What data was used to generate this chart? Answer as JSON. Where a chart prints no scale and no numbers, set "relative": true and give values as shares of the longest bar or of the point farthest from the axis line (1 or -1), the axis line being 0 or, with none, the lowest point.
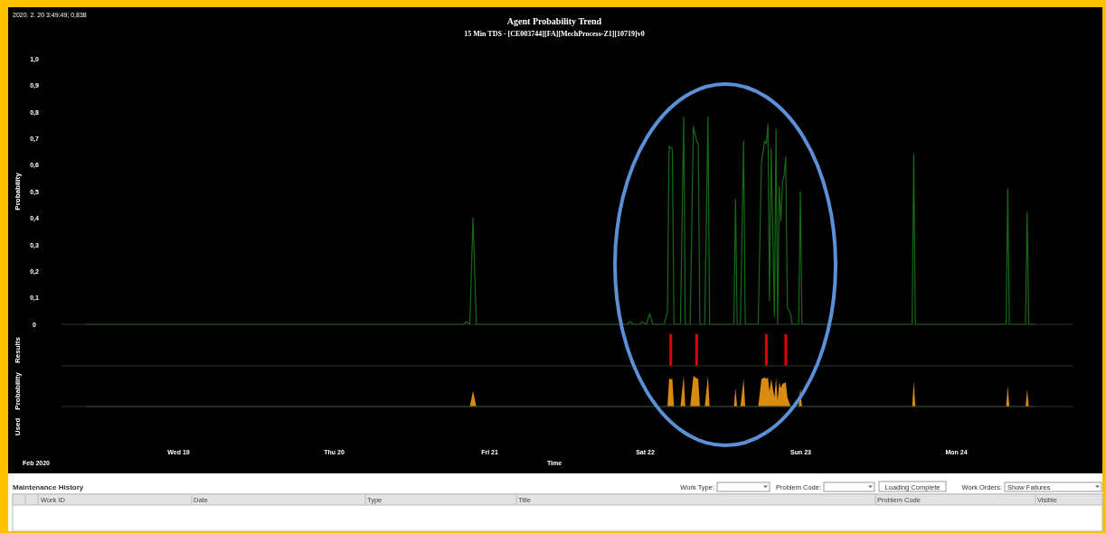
{
  "chart_data": [
    {
      "type": "line",
      "title": "Agent Probability Trend",
      "subtitle": "15 Min TDS - [CE003744][FA][MechProcess-Z1][10719]v0",
      "ylabel": "Probability",
      "annotations": [
        "2020. 2. 20 3:49:49; 0,838"
      ],
      "xlim": [
        "2020-02-18T06:00",
        "2020-02-24T18:00"
      ],
      "ylim": [
        0,
        1
      ],
      "yticks": [
        0,
        {
          "value": 0.1,
          "label": "0,1"
        },
        {
          "value": 0.2,
          "label": "0,2"
        },
        {
          "value": 0.3,
          "label": "0,3"
        },
        {
          "value": 0.4,
          "label": "0,4"
        },
        {
          "value": 0.5,
          "label": "0,5"
        },
        {
          "value": 0.6,
          "label": "0,6"
        },
        {
          "value": 0.7,
          "label": "0,7"
        },
        {
          "value": 0.8,
          "label": "0,8"
        },
        {
          "value": 0.9,
          "label": "0,9"
        },
        {
          "value": 1,
          "label": "1,0"
        }
      ],
      "tick_labels": "y",
      "x": [
        "2020-02-18T09:45",
        "2020-02-20T20:00",
        "2020-02-20T20:30",
        "2020-02-20T21:00",
        "2020-02-20T21:30",
        "2020-02-20T22:00",
        "2020-02-21T21:15",
        "2020-02-21T21:45",
        "2020-02-21T22:15",
        "2020-02-21T23:15",
        "2020-02-21T23:30",
        "2020-02-22T00:15",
        "2020-02-22T00:45",
        "2020-02-22T01:15",
        "2020-02-22T03:00",
        "2020-02-22T03:30",
        "2020-02-22T03:45",
        "2020-02-22T04:15",
        "2020-02-22T04:30",
        "2020-02-22T05:30",
        "2020-02-22T06:00",
        "2020-02-22T06:15",
        "2020-02-22T07:00",
        "2020-02-22T07:30",
        "2020-02-22T08:00",
        "2020-02-22T08:15",
        "2020-02-22T08:30",
        "2020-02-22T09:15",
        "2020-02-22T09:45",
        "2020-02-22T10:00",
        "2020-02-22T13:45",
        "2020-02-22T14:00",
        "2020-02-22T14:15",
        "2020-02-22T14:45",
        "2020-02-22T15:15",
        "2020-02-22T15:30",
        "2020-02-22T17:30",
        "2020-02-22T18:00",
        "2020-02-22T18:30",
        "2020-02-22T18:45",
        "2020-02-22T19:00",
        "2020-02-22T19:15",
        "2020-02-22T19:30",
        "2020-02-22T20:00",
        "2020-02-22T20:15",
        "2020-02-22T20:30",
        "2020-02-22T20:45",
        "2020-02-22T21:00",
        "2020-02-22T21:15",
        "2020-02-22T21:30",
        "2020-02-22T21:45",
        "2020-02-22T22:00",
        "2020-02-22T22:30",
        "2020-02-22T22:45",
        "2020-02-22T23:45",
        "2020-02-23T00:00",
        "2020-02-23T00:15",
        "2020-02-23T17:15",
        "2020-02-23T17:30",
        "2020-02-23T17:45",
        "2020-02-24T07:45",
        "2020-02-24T08:00",
        "2020-02-24T08:15",
        "2020-02-24T10:45",
        "2020-02-24T11:00",
        "2020-02-24T11:15",
        "2020-02-24T12:15"
      ],
      "series": [
        {
          "color": "#156b15",
          "values": [
            0,
            0,
            0.01,
            0,
            0.4,
            0,
            0,
            0.01,
            0,
            0,
            0.01,
            0,
            0.04,
            0,
            0,
            0.05,
            0.67,
            0.66,
            0,
            0,
            0.78,
            0,
            0,
            0.745,
            0.69,
            0.68,
            0,
            0,
            0.78,
            0,
            0,
            0.47,
            0,
            0,
            0.69,
            0,
            0,
            0.61,
            0.69,
            0.68,
            0.755,
            0.09,
            0.66,
            0.03,
            0.735,
            0,
            0.52,
            0.39,
            0.54,
            0.56,
            0.63,
            0.065,
            0.04,
            0,
            0,
            0.5,
            0,
            0,
            0.64,
            0,
            0,
            0.51,
            0,
            0,
            0.42,
            0,
            0
          ]
        }
      ]
    },
    {
      "type": "bar",
      "ylabel": "Results",
      "relative": true,
      "tick_labels": false,
      "xlim": [
        "2020-02-18T06:00",
        "2020-02-24T18:00"
      ],
      "x": [
        "2020-02-22T04:00",
        "2020-02-22T08:00",
        "2020-02-22T18:45",
        "2020-02-22T21:45"
      ],
      "series": [
        {
          "color": "#e00000",
          "values": [
            1,
            1,
            1,
            1
          ]
        }
      ]
    },
    {
      "type": "area",
      "ylabel": "Probability",
      "xlabel": "Time",
      "relative": true,
      "tick_labels": "x",
      "annotations": [
        "Feb 2020"
      ],
      "xlim": [
        "2020-02-18T06:00",
        "2020-02-24T18:00"
      ],
      "xticks": [
        {
          "value": "2020-02-19",
          "label": "Wed 19"
        },
        {
          "value": "2020-02-20",
          "label": "Thu 20"
        },
        {
          "value": "2020-02-21",
          "label": "Fri 21"
        },
        {
          "value": "2020-02-22",
          "label": "Sat 22"
        },
        {
          "value": "2020-02-23",
          "label": "Sun 23"
        },
        {
          "value": "2020-02-24",
          "label": "Mon 24"
        }
      ],
      "x": [
        "2020-02-18T09:45",
        "2020-02-20T20:00",
        "2020-02-20T20:30",
        "2020-02-20T21:00",
        "2020-02-20T21:30",
        "2020-02-20T22:00",
        "2020-02-21T21:15",
        "2020-02-21T21:45",
        "2020-02-21T22:15",
        "2020-02-21T23:15",
        "2020-02-21T23:30",
        "2020-02-22T00:15",
        "2020-02-22T00:45",
        "2020-02-22T01:15",
        "2020-02-22T03:00",
        "2020-02-22T03:30",
        "2020-02-22T03:45",
        "2020-02-22T04:15",
        "2020-02-22T04:30",
        "2020-02-22T05:30",
        "2020-02-22T06:00",
        "2020-02-22T06:15",
        "2020-02-22T07:00",
        "2020-02-22T07:30",
        "2020-02-22T08:00",
        "2020-02-22T08:15",
        "2020-02-22T08:30",
        "2020-02-22T09:15",
        "2020-02-22T09:45",
        "2020-02-22T10:00",
        "2020-02-22T13:45",
        "2020-02-22T14:00",
        "2020-02-22T14:15",
        "2020-02-22T14:45",
        "2020-02-22T15:15",
        "2020-02-22T15:30",
        "2020-02-22T17:30",
        "2020-02-22T18:00",
        "2020-02-22T18:30",
        "2020-02-22T18:45",
        "2020-02-22T19:00",
        "2020-02-22T19:15",
        "2020-02-22T19:30",
        "2020-02-22T20:00",
        "2020-02-22T20:15",
        "2020-02-22T20:30",
        "2020-02-22T20:45",
        "2020-02-22T21:00",
        "2020-02-22T21:15",
        "2020-02-22T21:30",
        "2020-02-22T21:45",
        "2020-02-22T22:00",
        "2020-02-22T22:30",
        "2020-02-22T22:45",
        "2020-02-22T23:45",
        "2020-02-23T00:00",
        "2020-02-23T00:15",
        "2020-02-23T17:15",
        "2020-02-23T17:30",
        "2020-02-23T17:45",
        "2020-02-24T07:45",
        "2020-02-24T08:00",
        "2020-02-24T08:15",
        "2020-02-24T10:45",
        "2020-02-24T11:00",
        "2020-02-24T11:15",
        "2020-02-24T12:15"
      ],
      "series": [
        {
          "color": "#d98a10",
          "values": [
            0,
            0,
            0,
            0,
            0.51,
            0,
            0,
            0,
            0,
            0,
            0,
            0,
            0,
            0,
            0,
            0,
            0.9,
            0.9,
            0,
            0,
            1,
            0,
            0,
            1,
            0.92,
            0.9,
            0,
            0,
            1,
            0,
            0,
            0.6,
            0,
            0,
            0.9,
            0,
            0,
            0.9,
            0.95,
            0.9,
            0.95,
            0.5,
            0.9,
            0.3,
            0.95,
            0.2,
            0.8,
            0.6,
            0.75,
            0.75,
            0.8,
            0.3,
            0,
            0,
            0,
            0.6,
            0,
            0,
            0.82,
            0,
            0,
            0.66,
            0,
            0,
            0.56,
            0,
            0
          ]
        }
      ]
    },
    {
      "type": "other",
      "ylabel": "Used"
    },
    {
      "type": "other",
      "title": "Maintenance History",
      "annotations": [
        "Work Type:",
        "Problem Code:",
        "Loading Complete",
        "Work Orders:",
        "Show Failures",
        "Work ID",
        "Date",
        "Type",
        "Title",
        "Problem Code",
        "Visible"
      ]
    }
  ]
}
